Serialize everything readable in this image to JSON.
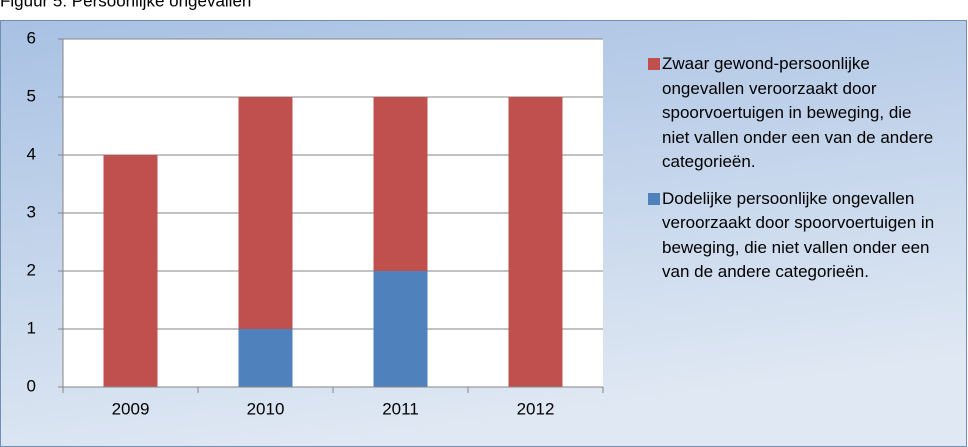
{
  "chart_data": {
    "type": "stacked_bar",
    "title": "Figuur 5: Persoonlijke ongevallen",
    "categories": [
      "2009",
      "2010",
      "2011",
      "2012"
    ],
    "series": [
      {
        "name": "Zwaar gewond-persoonlijke ongevallen veroorzaakt door spoorvoertuigen in beweging, die niet vallen onder een van de andere categorieën.",
        "color": "#c0504d",
        "values": [
          4,
          4,
          3,
          5
        ]
      },
      {
        "name": "Dodelijke persoonlijke ongevallen veroorzaakt door spoorvoertuigen in beweging, die niet vallen onder een van de andere categorieën.",
        "color": "#4f81bd",
        "values": [
          0,
          1,
          2,
          0
        ]
      }
    ],
    "ylim": [
      0,
      6
    ],
    "yticks": [
      0,
      1,
      2,
      3,
      4,
      5,
      6
    ],
    "grid": true,
    "legend": "right"
  }
}
